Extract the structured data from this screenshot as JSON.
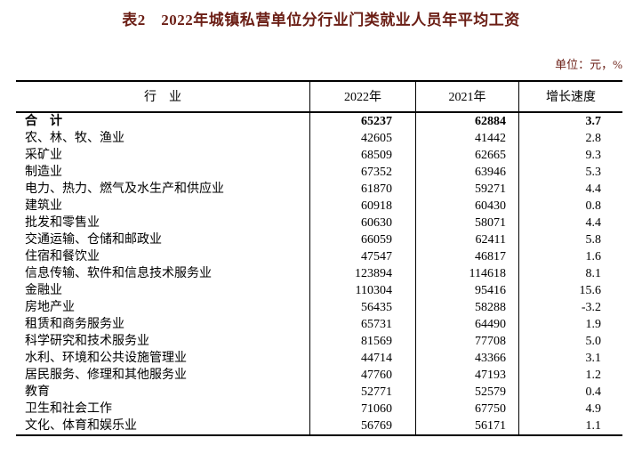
{
  "page": {
    "title": "表2　2022年城镇私营单位分行业门类就业人员年平均工资",
    "unit_label": "单位：元，%"
  },
  "colors": {
    "title_text": "#6b1e15",
    "unit_text": "#6b1e15",
    "table_text": "#000000",
    "border": "#000000",
    "background": "#ffffff"
  },
  "table": {
    "headers": {
      "industry": "行　业",
      "y2022": "2022年",
      "y2021": "2021年",
      "growth": "增长速度"
    },
    "rows": [
      {
        "industry": "合　计",
        "y2022": "65237",
        "y2021": "62884",
        "growth": "3.7",
        "bold": true
      },
      {
        "industry": "农、林、牧、渔业",
        "y2022": "42605",
        "y2021": "41442",
        "growth": "2.8",
        "bold": false
      },
      {
        "industry": "采矿业",
        "y2022": "68509",
        "y2021": "62665",
        "growth": "9.3",
        "bold": false
      },
      {
        "industry": "制造业",
        "y2022": "67352",
        "y2021": "63946",
        "growth": "5.3",
        "bold": false
      },
      {
        "industry": "电力、热力、燃气及水生产和供应业",
        "y2022": "61870",
        "y2021": "59271",
        "growth": "4.4",
        "bold": false
      },
      {
        "industry": "建筑业",
        "y2022": "60918",
        "y2021": "60430",
        "growth": "0.8",
        "bold": false
      },
      {
        "industry": "批发和零售业",
        "y2022": "60630",
        "y2021": "58071",
        "growth": "4.4",
        "bold": false
      },
      {
        "industry": "交通运输、仓储和邮政业",
        "y2022": "66059",
        "y2021": "62411",
        "growth": "5.8",
        "bold": false
      },
      {
        "industry": "住宿和餐饮业",
        "y2022": "47547",
        "y2021": "46817",
        "growth": "1.6",
        "bold": false
      },
      {
        "industry": "信息传输、软件和信息技术服务业",
        "y2022": "123894",
        "y2021": "114618",
        "growth": "8.1",
        "bold": false
      },
      {
        "industry": "金融业",
        "y2022": "110304",
        "y2021": "95416",
        "growth": "15.6",
        "bold": false
      },
      {
        "industry": "房地产业",
        "y2022": "56435",
        "y2021": "58288",
        "growth": "-3.2",
        "bold": false
      },
      {
        "industry": "租赁和商务服务业",
        "y2022": "65731",
        "y2021": "64490",
        "growth": "1.9",
        "bold": false
      },
      {
        "industry": "科学研究和技术服务业",
        "y2022": "81569",
        "y2021": "77708",
        "growth": "5.0",
        "bold": false
      },
      {
        "industry": "水利、环境和公共设施管理业",
        "y2022": "44714",
        "y2021": "43366",
        "growth": "3.1",
        "bold": false
      },
      {
        "industry": "居民服务、修理和其他服务业",
        "y2022": "47760",
        "y2021": "47193",
        "growth": "1.2",
        "bold": false
      },
      {
        "industry": "教育",
        "y2022": "52771",
        "y2021": "52579",
        "growth": "0.4",
        "bold": false
      },
      {
        "industry": "卫生和社会工作",
        "y2022": "71060",
        "y2021": "67750",
        "growth": "4.9",
        "bold": false
      },
      {
        "industry": "文化、体育和娱乐业",
        "y2022": "56769",
        "y2021": "56171",
        "growth": "1.1",
        "bold": false
      }
    ]
  },
  "chart_data": {
    "type": "table",
    "title": "表2　2022年城镇私营单位分行业门类就业人员年平均工资",
    "unit": "单位：元，%",
    "columns": [
      "行业",
      "2022年",
      "2021年",
      "增长速度"
    ],
    "rows": [
      [
        "合计",
        65237,
        62884,
        3.7
      ],
      [
        "农、林、牧、渔业",
        42605,
        41442,
        2.8
      ],
      [
        "采矿业",
        68509,
        62665,
        9.3
      ],
      [
        "制造业",
        67352,
        63946,
        5.3
      ],
      [
        "电力、热力、燃气及水生产和供应业",
        61870,
        59271,
        4.4
      ],
      [
        "建筑业",
        60918,
        60430,
        0.8
      ],
      [
        "批发和零售业",
        60630,
        58071,
        4.4
      ],
      [
        "交通运输、仓储和邮政业",
        66059,
        62411,
        5.8
      ],
      [
        "住宿和餐饮业",
        47547,
        46817,
        1.6
      ],
      [
        "信息传输、软件和信息技术服务业",
        123894,
        114618,
        8.1
      ],
      [
        "金融业",
        110304,
        95416,
        15.6
      ],
      [
        "房地产业",
        56435,
        58288,
        -3.2
      ],
      [
        "租赁和商务服务业",
        65731,
        64490,
        1.9
      ],
      [
        "科学研究和技术服务业",
        81569,
        77708,
        5.0
      ],
      [
        "水利、环境和公共设施管理业",
        44714,
        43366,
        3.1
      ],
      [
        "居民服务、修理和其他服务业",
        47760,
        47193,
        1.2
      ],
      [
        "教育",
        52771,
        52579,
        0.4
      ],
      [
        "卫生和社会工作",
        71060,
        67750,
        4.9
      ],
      [
        "文化、体育和娱乐业",
        56769,
        56171,
        1.1
      ]
    ]
  }
}
